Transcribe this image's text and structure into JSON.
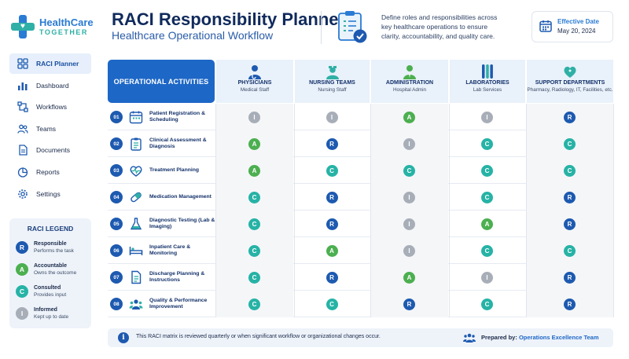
{
  "brand": {
    "line1": "HealthCare",
    "line2": "TOGETHER"
  },
  "header": {
    "title": "RACI Responsibility Planner",
    "subtitle": "Healthcare Operational Workflow",
    "description": "Define roles and responsibilities across key healthcare operations to ensure clarity, accountability, and quality care.",
    "effective_label": "Effective Date",
    "effective_date": "May 20, 2024"
  },
  "nav": [
    {
      "label": "RACI Planner",
      "icon": "grid-icon",
      "active": true
    },
    {
      "label": "Dashboard",
      "icon": "bar-chart-icon"
    },
    {
      "label": "Workflows",
      "icon": "workflow-icon"
    },
    {
      "label": "Teams",
      "icon": "people-icon"
    },
    {
      "label": "Documents",
      "icon": "document-icon"
    },
    {
      "label": "Reports",
      "icon": "pie-chart-icon"
    },
    {
      "label": "Settings",
      "icon": "gear-icon"
    }
  ],
  "legend": {
    "title": "RACI LEGEND",
    "items": [
      {
        "code": "R",
        "name": "Responsible",
        "desc": "Performs the task"
      },
      {
        "code": "A",
        "name": "Accountable",
        "desc": "Owns the outcome"
      },
      {
        "code": "C",
        "name": "Consulted",
        "desc": "Provides input"
      },
      {
        "code": "I",
        "name": "Informed",
        "desc": "Kept up to date"
      }
    ]
  },
  "table": {
    "ops_header": "OPERATIONAL ACTIVITIES",
    "columns": [
      {
        "name": "PHYSICIANS",
        "sub": "Medical Staff",
        "icon": "physician-icon"
      },
      {
        "name": "NURSING TEAMS",
        "sub": "Nursing Staff",
        "icon": "nurse-icon"
      },
      {
        "name": "ADMINISTRATION",
        "sub": "Hospital Admin",
        "icon": "admin-icon"
      },
      {
        "name": "LABORATORIES",
        "sub": "Lab Services",
        "icon": "test-tubes-icon"
      },
      {
        "name": "SUPPORT DEPARTMENTS",
        "sub": "Pharmacy, Radiology, IT, Facilities, etc.",
        "icon": "support-heart-icon"
      }
    ],
    "rows": [
      {
        "num": "01",
        "label": "Patient Registration & Scheduling",
        "icon": "calendar-icon",
        "cells": [
          "I",
          "I",
          "A",
          "I",
          "R"
        ]
      },
      {
        "num": "02",
        "label": "Clinical Assessment & Diagnosis",
        "icon": "clipboard-icon",
        "cells": [
          "A",
          "R",
          "I",
          "C",
          "C"
        ]
      },
      {
        "num": "03",
        "label": "Treatment Planning",
        "icon": "heartbeat-icon",
        "cells": [
          "A",
          "C",
          "C",
          "C",
          "C"
        ]
      },
      {
        "num": "04",
        "label": "Medication Management",
        "icon": "pill-icon",
        "cells": [
          "C",
          "R",
          "I",
          "C",
          "R"
        ]
      },
      {
        "num": "05",
        "label": "Diagnostic Testing (Lab & Imaging)",
        "icon": "flask-icon",
        "cells": [
          "C",
          "R",
          "I",
          "A",
          "R"
        ]
      },
      {
        "num": "06",
        "label": "Inpatient Care & Monitoring",
        "icon": "bed-icon",
        "cells": [
          "C",
          "A",
          "I",
          "C",
          "C"
        ]
      },
      {
        "num": "07",
        "label": "Discharge Planning & Instructions",
        "icon": "document-icon",
        "cells": [
          "C",
          "R",
          "A",
          "I",
          "R"
        ]
      },
      {
        "num": "08",
        "label": "Quality & Performance Improvement",
        "icon": "team-icon",
        "cells": [
          "C",
          "C",
          "R",
          "C",
          "R"
        ]
      }
    ]
  },
  "footer": {
    "note": "This RACI matrix is reviewed quarterly or when significant workflow or organizational changes occur.",
    "prepared_label": "Prepared by:",
    "prepared_team": "Operations Excellence Team"
  },
  "colors": {
    "R": "#1d5ab0",
    "A": "#4caf50",
    "C": "#26b3a6",
    "I": "#a8aeb8",
    "accent": "#1d67c6"
  }
}
